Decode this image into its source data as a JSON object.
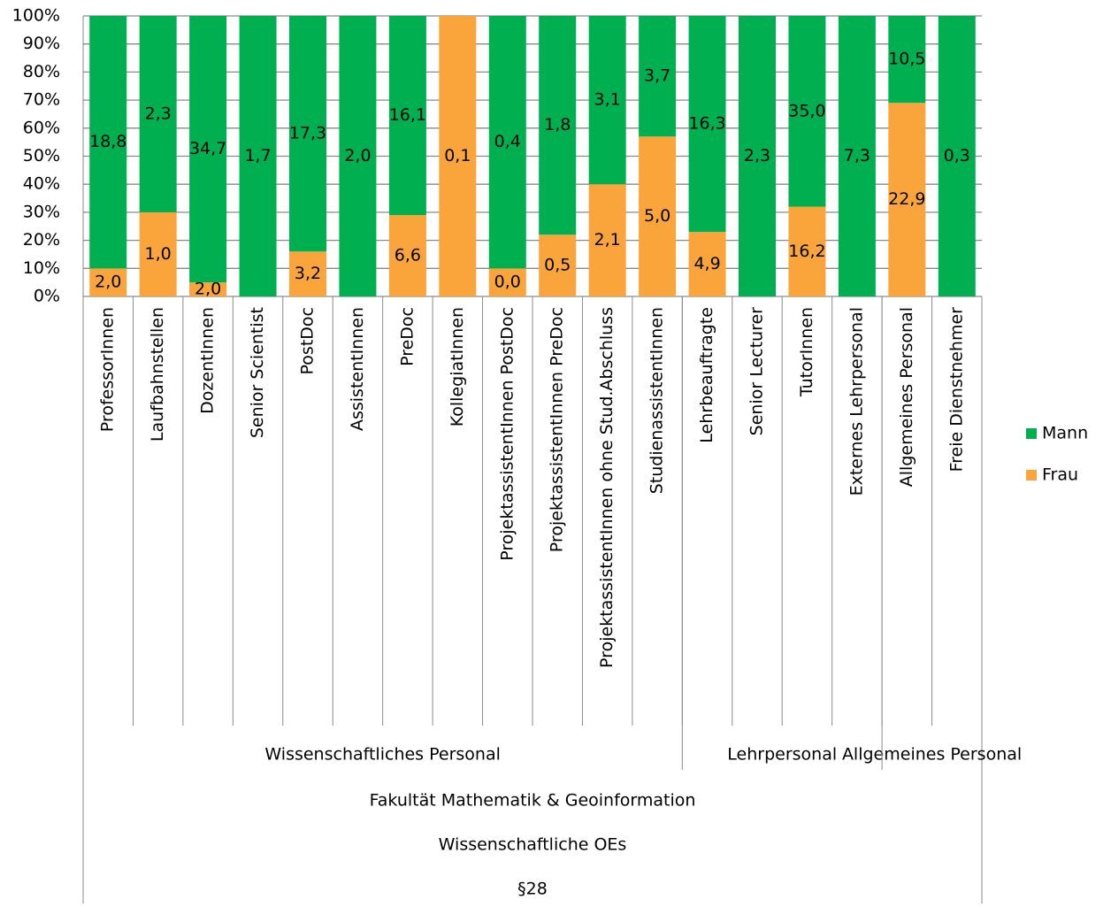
{
  "chart_data": {
    "type": "bar",
    "stacked": "percent",
    "categories": [
      "ProfessorInnen",
      "Laufbahnstellen",
      "DozentInnen",
      "Senior Scientist",
      "PostDoc",
      "AssistentInnen",
      "PreDoc",
      "KollegiatInnen",
      "ProjektassistentInnen PostDoc",
      "ProjektassistentInnen PreDoc",
      "ProjektassistentInnen ohne Stud.Abschluss",
      "StudienassistentInnen",
      "Lehrbeauftragte",
      "Senior Lecturer",
      "TutorInnen",
      "Externes Lehrpersonal",
      "Allgemeines Personal",
      "Freie Dienstnehmer"
    ],
    "groups": [
      [
        {
          "label": "Wissenschaftliches Personal",
          "span": 12
        },
        {
          "label": "Lehrpersonal",
          "span": 4
        },
        {
          "label": "Allgemeines Personal",
          "span": 2
        }
      ],
      [
        {
          "label": "Fakultät Mathematik & Geoinformation",
          "span": 18
        }
      ],
      [
        {
          "label": "Wissenschaftliche OEs",
          "span": 18
        }
      ],
      [
        {
          "label": "§28",
          "span": 18
        }
      ]
    ],
    "series": [
      {
        "name": "Frau",
        "color": "#f9a53c",
        "values": [
          10,
          30,
          5,
          0,
          16,
          0,
          29,
          100,
          10,
          22,
          40,
          57,
          23,
          0,
          32,
          0,
          69,
          0
        ],
        "data_labels": [
          "2,0",
          "1,0",
          "2,0",
          null,
          "3,2",
          null,
          "6,6",
          "0,1",
          "0,0",
          "0,5",
          "2,1",
          "5,0",
          "4,9",
          null,
          "16,2",
          null,
          "22,9",
          null
        ]
      },
      {
        "name": "Mann",
        "color": "#00b050",
        "values": [
          90,
          70,
          95,
          100,
          84,
          100,
          71,
          0,
          90,
          78,
          60,
          43,
          77,
          100,
          68,
          100,
          31,
          100
        ],
        "data_labels": [
          "18,8",
          "2,3",
          "34,7",
          "1,7",
          "17,3",
          "2,0",
          "16,1",
          null,
          "0,4",
          "1,8",
          "3,1",
          "3,7",
          "16,3",
          "2,3",
          "35,0",
          "7,3",
          "10,5",
          "0,3"
        ]
      }
    ],
    "ylim": [
      0,
      100
    ],
    "yticks": [
      {
        "value": 0,
        "label": "0%"
      },
      {
        "value": 10,
        "label": "10%"
      },
      {
        "value": 20,
        "label": "20%"
      },
      {
        "value": 30,
        "label": "30%"
      },
      {
        "value": 40,
        "label": "40%"
      },
      {
        "value": 50,
        "label": "50%"
      },
      {
        "value": 60,
        "label": "60%"
      },
      {
        "value": 70,
        "label": "70%"
      },
      {
        "value": 80,
        "label": "80%"
      },
      {
        "value": 90,
        "label": "90%"
      },
      {
        "value": 100,
        "label": "100%"
      }
    ],
    "grid": true,
    "legend": "right"
  }
}
